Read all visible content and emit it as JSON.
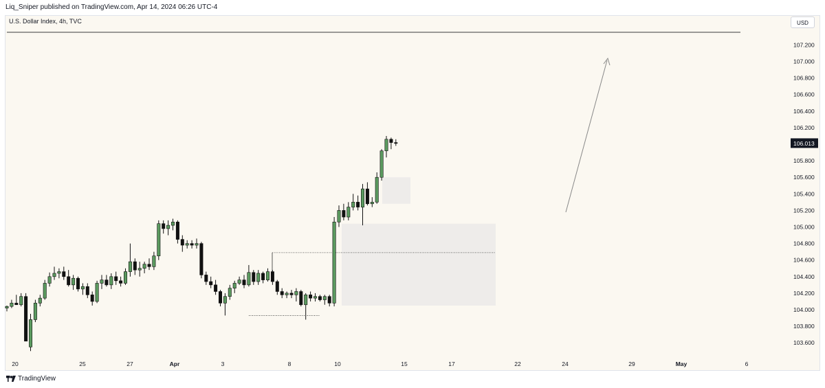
{
  "header": {
    "published_by": "Liq_Sniper published on TradingView.com, Apr 14, 2024 06:26 UTC-4"
  },
  "symbol_title": "U.S. Dollar Index, 4h, TVC",
  "currency_label": "USD",
  "footer": {
    "brand": "TradingView",
    "logo_icon": "tradingview-logo-icon"
  },
  "colors": {
    "background": "#fbf8f1",
    "bull": "#5b9a5f",
    "bear": "#111111",
    "zone": "#eeecea",
    "price_tag_bg": "#131722"
  },
  "chart_data": {
    "type": "candlestick",
    "title": "U.S. Dollar Index, 4h, TVC",
    "current_price": "106.013",
    "y_axis": {
      "ticks": [
        "103.600",
        "103.800",
        "104.000",
        "104.200",
        "104.400",
        "104.600",
        "104.800",
        "105.000",
        "105.200",
        "105.400",
        "105.600",
        "105.800",
        "106.000",
        "106.200",
        "106.400",
        "106.600",
        "106.800",
        "107.000",
        "107.200"
      ],
      "range": [
        103.5,
        107.4
      ]
    },
    "x_axis": {
      "ticks": [
        "20",
        "25",
        "27",
        "Apr",
        "3",
        "8",
        "10",
        "15",
        "17",
        "22",
        "24",
        "29",
        "May",
        "6"
      ]
    },
    "candles": [
      [
        104.02,
        104.05,
        103.98,
        104.04
      ],
      [
        104.04,
        104.12,
        104.02,
        104.08
      ],
      [
        104.08,
        104.18,
        104.06,
        104.06
      ],
      [
        104.06,
        104.2,
        104.04,
        104.16
      ],
      [
        104.16,
        104.2,
        103.62,
        103.62
      ],
      [
        103.55,
        103.95,
        103.5,
        103.88
      ],
      [
        103.88,
        104.12,
        103.85,
        104.08
      ],
      [
        104.08,
        104.18,
        104.04,
        104.14
      ],
      [
        104.14,
        104.36,
        104.12,
        104.32
      ],
      [
        104.32,
        104.45,
        104.28,
        104.4
      ],
      [
        104.4,
        104.52,
        104.36,
        104.44
      ],
      [
        104.44,
        104.5,
        104.38,
        104.46
      ],
      [
        104.46,
        104.52,
        104.36,
        104.4
      ],
      [
        104.4,
        104.48,
        104.28,
        104.3
      ],
      [
        104.3,
        104.42,
        104.24,
        104.38
      ],
      [
        104.38,
        104.4,
        104.22,
        104.25
      ],
      [
        104.25,
        104.32,
        104.18,
        104.28
      ],
      [
        104.28,
        104.32,
        104.14,
        104.18
      ],
      [
        104.18,
        104.22,
        104.05,
        104.1
      ],
      [
        104.1,
        104.35,
        104.08,
        104.32
      ],
      [
        104.32,
        104.42,
        104.25,
        104.36
      ],
      [
        104.36,
        104.42,
        104.28,
        104.3
      ],
      [
        104.3,
        104.44,
        104.25,
        104.4
      ],
      [
        104.4,
        104.46,
        104.3,
        104.35
      ],
      [
        104.35,
        104.4,
        104.28,
        104.32
      ],
      [
        104.32,
        104.5,
        104.3,
        104.46
      ],
      [
        104.46,
        104.8,
        104.4,
        104.58
      ],
      [
        104.58,
        104.62,
        104.42,
        104.48
      ],
      [
        104.48,
        104.58,
        104.4,
        104.5
      ],
      [
        104.5,
        104.58,
        104.44,
        104.55
      ],
      [
        104.55,
        104.62,
        104.48,
        104.52
      ],
      [
        104.52,
        104.7,
        104.48,
        104.65
      ],
      [
        104.65,
        105.08,
        104.6,
        105.04
      ],
      [
        105.04,
        105.08,
        104.92,
        104.98
      ],
      [
        104.98,
        105.08,
        104.9,
        105.02
      ],
      [
        105.02,
        105.1,
        104.96,
        105.06
      ],
      [
        105.06,
        105.08,
        104.8,
        104.85
      ],
      [
        104.85,
        104.9,
        104.7,
        104.78
      ],
      [
        104.78,
        104.84,
        104.74,
        104.8
      ],
      [
        104.8,
        104.84,
        104.74,
        104.78
      ],
      [
        104.78,
        104.86,
        104.74,
        104.8
      ],
      [
        104.8,
        104.82,
        104.38,
        104.42
      ],
      [
        104.42,
        104.46,
        104.3,
        104.34
      ],
      [
        104.34,
        104.4,
        104.26,
        104.3
      ],
      [
        104.3,
        104.36,
        104.18,
        104.22
      ],
      [
        104.22,
        104.24,
        104.04,
        104.08
      ],
      [
        104.08,
        104.2,
        103.93,
        104.16
      ],
      [
        104.16,
        104.3,
        104.12,
        104.26
      ],
      [
        104.26,
        104.35,
        104.2,
        104.32
      ],
      [
        104.32,
        104.4,
        104.3,
        104.36
      ],
      [
        104.36,
        104.42,
        104.26,
        104.3
      ],
      [
        104.3,
        104.54,
        104.28,
        104.45
      ],
      [
        104.45,
        104.48,
        104.3,
        104.34
      ],
      [
        104.34,
        104.48,
        104.3,
        104.44
      ],
      [
        104.44,
        104.46,
        104.32,
        104.36
      ],
      [
        104.36,
        104.5,
        104.34,
        104.46
      ],
      [
        104.46,
        104.48,
        104.3,
        104.34
      ],
      [
        104.34,
        104.36,
        104.18,
        104.22
      ],
      [
        104.22,
        104.26,
        104.14,
        104.18
      ],
      [
        104.18,
        104.22,
        104.14,
        104.2
      ],
      [
        104.2,
        104.24,
        104.14,
        104.18
      ],
      [
        104.18,
        104.26,
        104.1,
        104.22
      ],
      [
        104.22,
        104.24,
        104.04,
        104.06
      ],
      [
        104.06,
        104.2,
        103.88,
        104.18
      ],
      [
        104.18,
        104.22,
        104.1,
        104.14
      ],
      [
        104.14,
        104.2,
        104.1,
        104.16
      ],
      [
        104.16,
        104.18,
        104.1,
        104.12
      ],
      [
        104.12,
        104.18,
        104.06,
        104.16
      ],
      [
        104.16,
        104.18,
        104.04,
        104.08
      ],
      [
        104.08,
        105.12,
        104.04,
        105.06
      ],
      [
        105.06,
        105.26,
        105.0,
        105.2
      ],
      [
        105.2,
        105.28,
        105.08,
        105.12
      ],
      [
        105.12,
        105.3,
        105.08,
        105.24
      ],
      [
        105.24,
        105.4,
        105.2,
        105.3
      ],
      [
        105.3,
        105.38,
        105.2,
        105.24
      ],
      [
        105.24,
        105.52,
        105.02,
        105.46
      ],
      [
        105.46,
        105.54,
        105.26,
        105.28
      ],
      [
        105.28,
        105.36,
        105.24,
        105.3
      ],
      [
        105.3,
        105.66,
        105.28,
        105.6
      ],
      [
        105.6,
        105.94,
        105.56,
        105.92
      ],
      [
        105.92,
        106.1,
        105.84,
        106.06
      ],
      [
        106.06,
        106.08,
        105.94,
        106.02
      ],
      [
        106.02,
        106.06,
        105.98,
        106.01
      ]
    ]
  }
}
